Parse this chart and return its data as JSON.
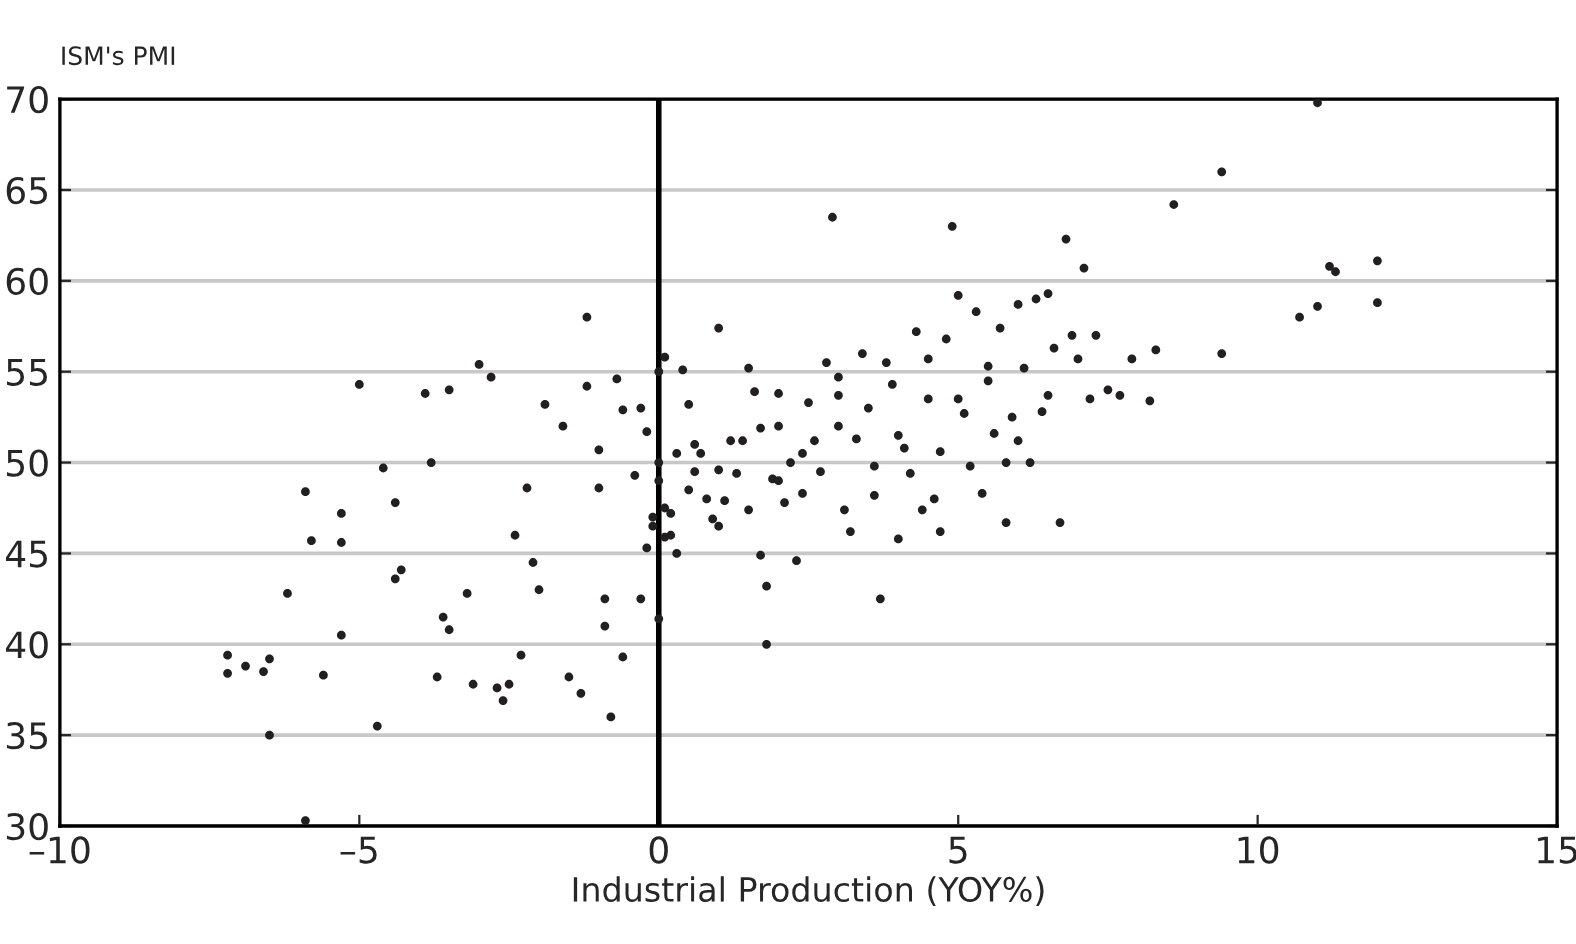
{
  "chart_data": {
    "type": "scatter",
    "ylabel": "ISM's PMI",
    "xlabel": "Industrial Production (YOY%)",
    "xlim": [
      -10,
      15
    ],
    "xticks": [
      {
        "value": -10,
        "label": "–10"
      },
      {
        "value": -5,
        "label": "–5"
      },
      0,
      5,
      10,
      15
    ],
    "ylim": [
      30,
      70
    ],
    "yticks": [
      30,
      35,
      40,
      45,
      50,
      55,
      60,
      65,
      70
    ],
    "grid": "y",
    "marker": "circle",
    "ref_lines": [
      {
        "axis": "x",
        "value": 0,
        "color": "#000000",
        "line_style": "solid"
      }
    ],
    "series": [
      {
        "color": "#231f20",
        "x": [
          -7.2,
          -7.2,
          -6.9,
          -6.6,
          -6.5,
          -6.5,
          -6.2,
          -5.9,
          -5.8,
          -5.9,
          -5.6,
          -5.3,
          -5.3,
          -5.3,
          -5.0,
          -4.7,
          -4.6,
          -4.4,
          -4.4,
          -4.3,
          -3.9,
          -3.8,
          -3.7,
          -3.6,
          -3.5,
          -3.5,
          -3.2,
          -3.1,
          -3.0,
          -2.8,
          -2.7,
          -2.6,
          -2.5,
          -2.4,
          -2.3,
          -2.2,
          -2.1,
          -2.0,
          -1.9,
          -1.6,
          -1.5,
          -1.3,
          -1.2,
          -1.2,
          -1.0,
          -1.0,
          -0.9,
          -0.9,
          -0.8,
          -0.7,
          -0.6,
          -0.6,
          -0.4,
          -0.3,
          -0.2,
          -0.1,
          -0.1,
          0.0,
          0.0,
          0.0,
          0.2,
          -0.3,
          -0.2,
          0.0,
          0.1,
          0.1,
          0.1,
          0.2,
          0.3,
          0.3,
          0.4,
          0.5,
          0.5,
          0.6,
          0.6,
          0.7,
          0.8,
          0.9,
          1.0,
          1.0,
          1.1,
          1.2,
          1.3,
          1.4,
          1.5,
          1.5,
          1.6,
          1.7,
          1.7,
          1.8,
          1.8,
          1.9,
          2.0,
          2.0,
          2.1,
          2.2,
          2.3,
          2.4,
          2.4,
          2.5,
          2.6,
          2.7,
          2.8,
          2.9,
          3.0,
          3.0,
          3.1,
          3.2,
          3.3,
          3.4,
          3.5,
          3.6,
          3.6,
          3.7,
          3.8,
          3.9,
          4.0,
          4.1,
          4.2,
          4.3,
          4.4,
          4.5,
          4.6,
          4.7,
          4.7,
          4.8,
          4.9,
          5.0,
          5.1,
          5.2,
          5.3,
          5.4,
          5.5,
          5.6,
          5.7,
          5.8,
          5.9,
          6.0,
          6.1,
          6.2,
          6.3,
          6.4,
          6.5,
          6.6,
          6.7,
          6.8,
          6.9,
          7.0,
          7.1,
          7.2,
          7.3,
          7.5,
          7.7,
          7.9,
          8.2,
          8.3,
          8.6,
          9.4,
          9.4,
          10.7,
          11.0,
          11.0,
          11.2,
          11.3,
          12.0,
          12.0,
          5.0,
          5.5,
          6.0,
          3.0,
          4.0,
          2.0,
          1.0,
          6.5,
          5.8,
          4.5
        ],
        "values": [
          39.4,
          38.4,
          38.8,
          38.5,
          39.2,
          35,
          42.8,
          48.4,
          45.7,
          30.3,
          38.3,
          47.2,
          45.6,
          40.5,
          54.3,
          35.5,
          49.7,
          47.8,
          43.6,
          44.1,
          53.8,
          50.0,
          38.2,
          41.5,
          40.8,
          54.0,
          42.8,
          37.8,
          55.4,
          54.7,
          37.6,
          36.9,
          37.8,
          46.0,
          39.4,
          48.6,
          44.5,
          43.0,
          53.2,
          52.0,
          38.2,
          37.3,
          58.0,
          54.2,
          50.7,
          48.6,
          41.0,
          42.5,
          36.0,
          54.6,
          52.9,
          39.3,
          49.3,
          53.0,
          45.3,
          47.0,
          46.5,
          55.0,
          49.0,
          41.4,
          47.2,
          42.5,
          51.7,
          50.0,
          45.9,
          55.8,
          47.5,
          46.0,
          50.5,
          45.0,
          55.1,
          48.5,
          53.2,
          51.0,
          49.5,
          50.5,
          48.0,
          46.9,
          57.4,
          49.6,
          47.9,
          51.2,
          49.4,
          51.2,
          47.4,
          55.2,
          53.9,
          44.9,
          51.9,
          43.2,
          40.0,
          49.1,
          52.0,
          53.8,
          47.8,
          50.0,
          44.6,
          50.5,
          48.3,
          53.3,
          51.2,
          49.5,
          55.5,
          63.5,
          54.7,
          53.7,
          47.4,
          46.2,
          51.3,
          56.0,
          53.0,
          49.8,
          48.2,
          42.5,
          55.5,
          54.3,
          51.5,
          50.8,
          49.4,
          57.2,
          47.4,
          55.7,
          48.0,
          50.6,
          46.2,
          56.8,
          63.0,
          53.5,
          52.7,
          49.8,
          58.3,
          48.3,
          55.3,
          51.6,
          57.4,
          46.7,
          52.5,
          58.7,
          55.2,
          50.0,
          59.0,
          52.8,
          59.3,
          56.3,
          46.7,
          62.3,
          57.0,
          55.7,
          60.7,
          53.5,
          57.0,
          54.0,
          53.7,
          55.7,
          53.4,
          56.2,
          64.2,
          66.0,
          56.0,
          58.0,
          69.8,
          58.6,
          60.8,
          60.5,
          61.1,
          58.8,
          59.2,
          54.5,
          51.2,
          52.0,
          45.8,
          49.0,
          46.5,
          53.7,
          50.0,
          53.5
        ]
      }
    ]
  }
}
